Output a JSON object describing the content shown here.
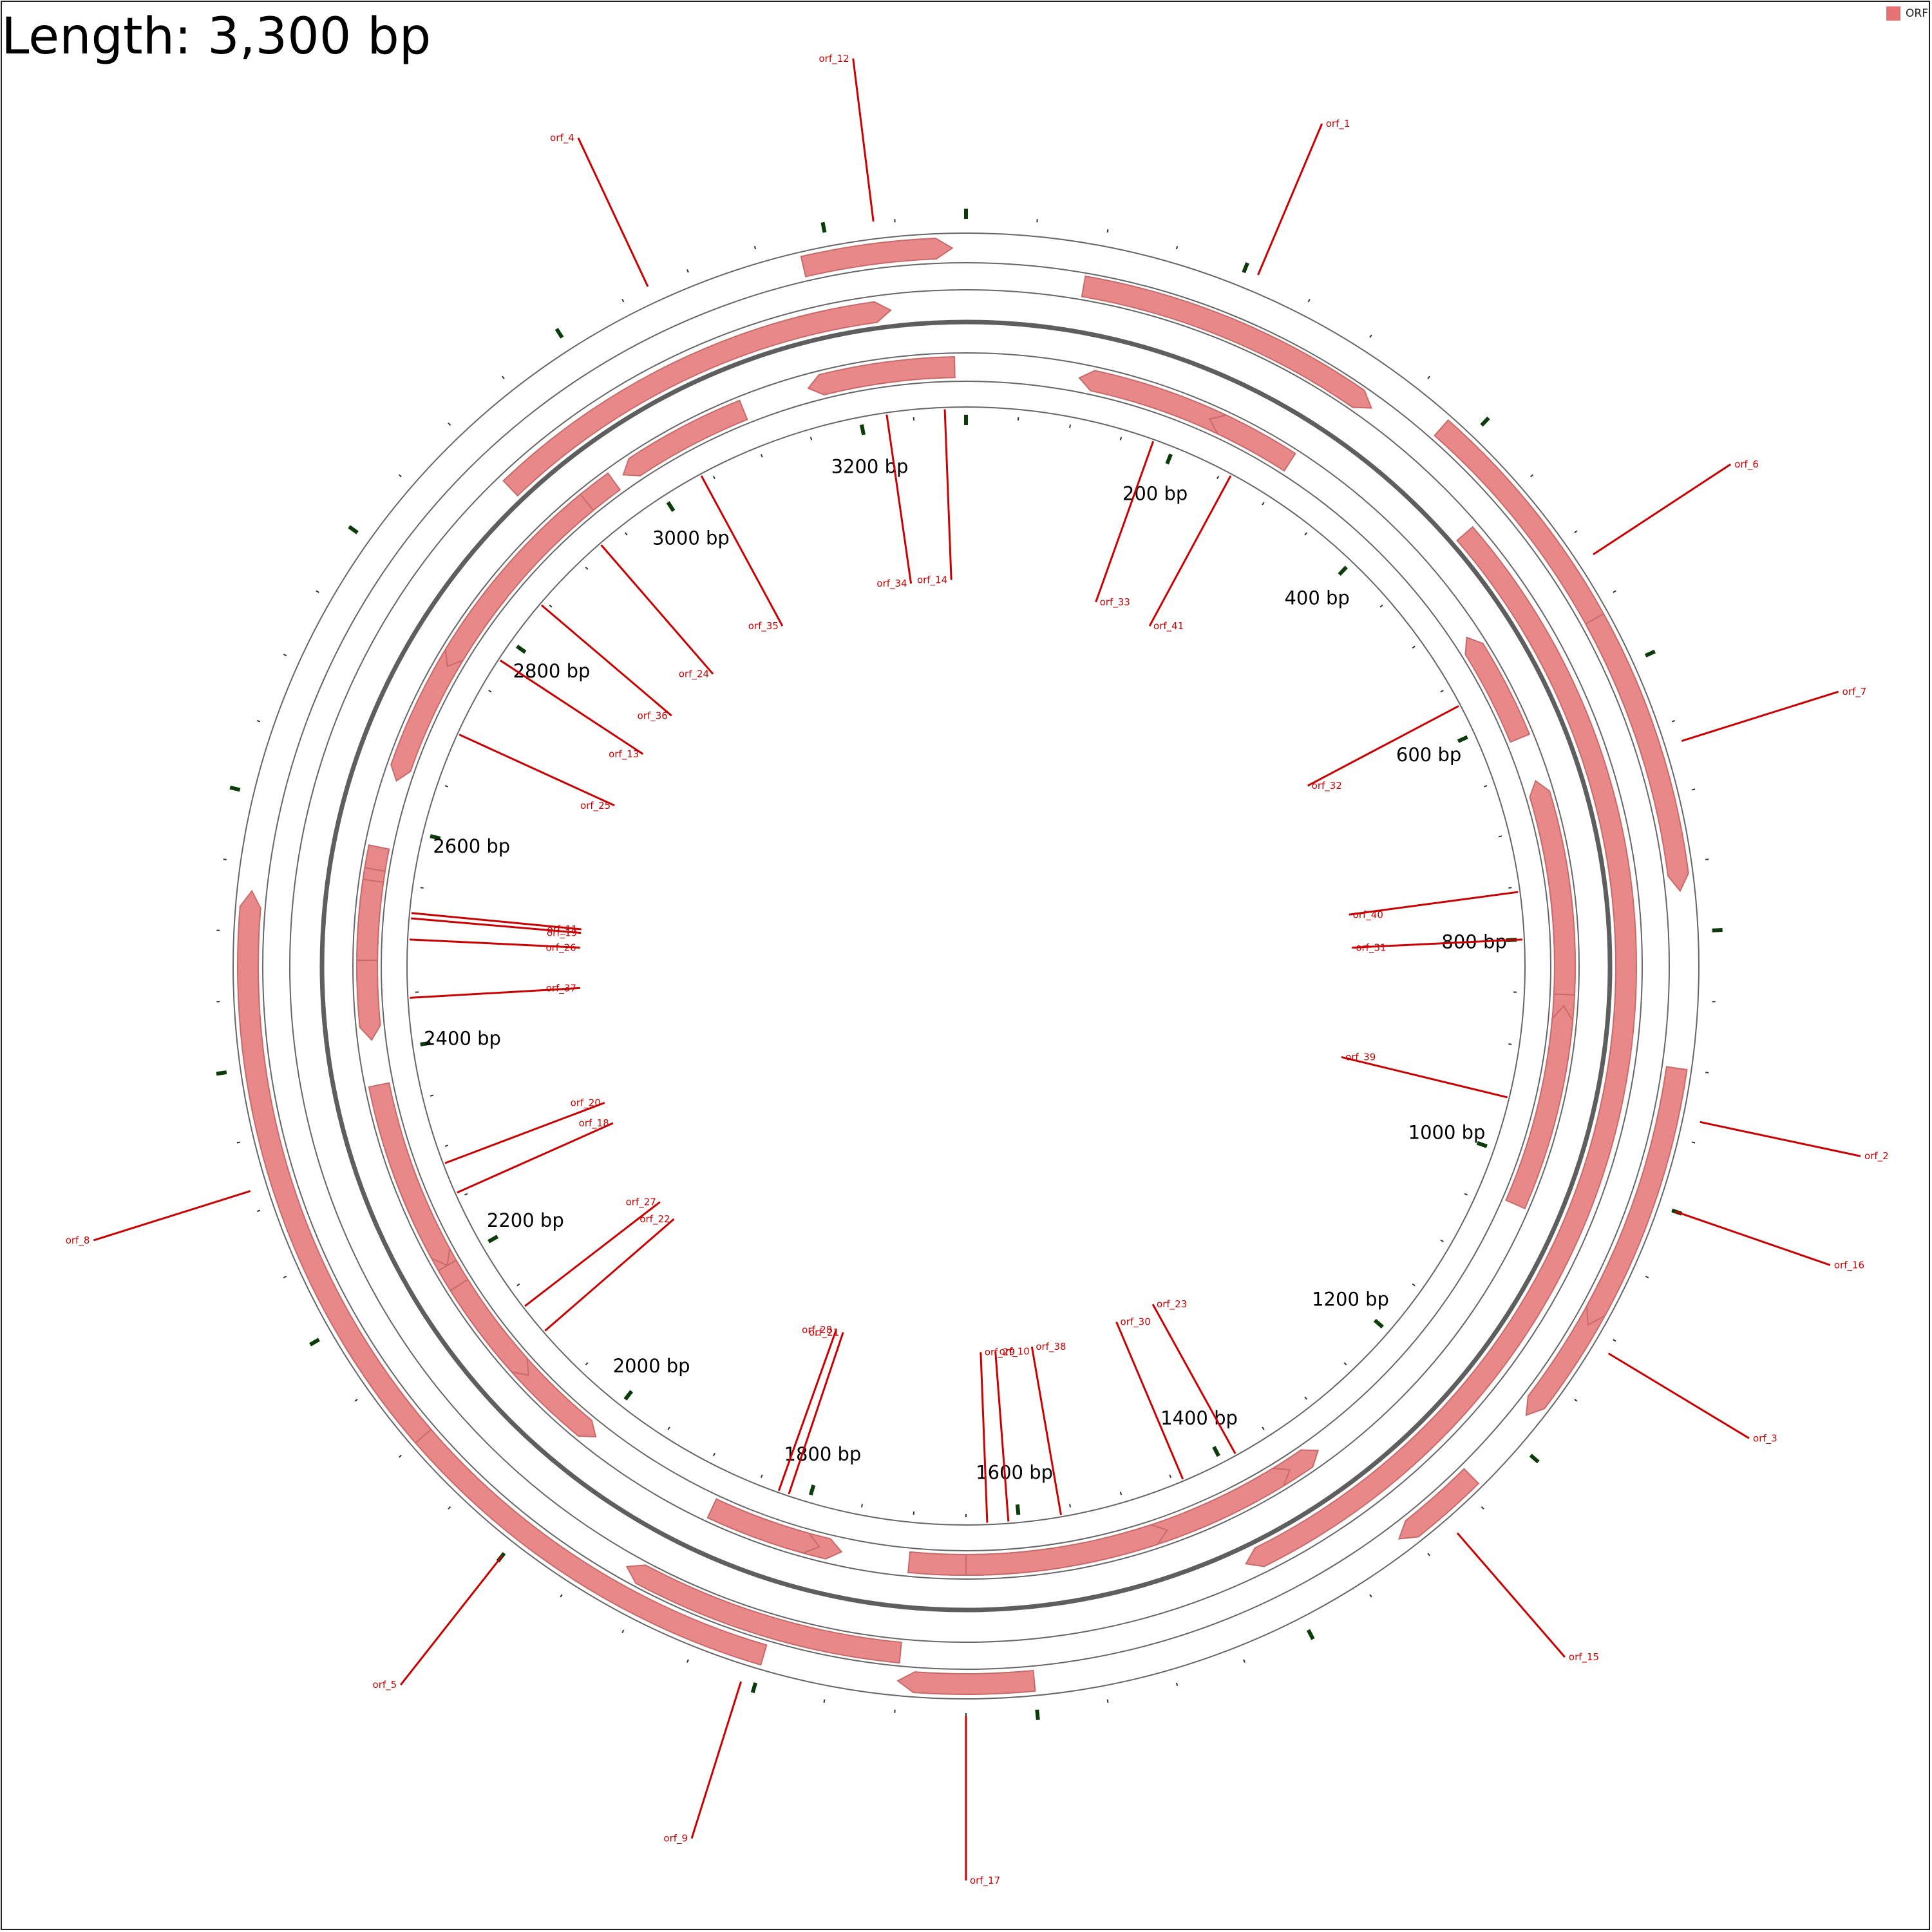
{
  "title": "Length: 3,300 bp",
  "legend": {
    "label": "ORF",
    "color": "#e57373"
  },
  "colors": {
    "feature": "#e88888",
    "feature_edge": "#c96a6a",
    "label": "#cc0000",
    "ring": "#666666",
    "backbone": "#5e5e5e",
    "major_tick": "#0a3d0a"
  },
  "chart_data": {
    "type": "circular-genome-map",
    "sequence_length_bp": 3300,
    "ticks": {
      "major_every_bp": 100,
      "minor_every_bp": 50,
      "scale_labels": [
        "200 bp",
        "400 bp",
        "600 bp",
        "800 bp",
        "1000 bp",
        "1200 bp",
        "1400 bp",
        "1600 bp",
        "1800 bp",
        "2000 bp",
        "2200 bp",
        "2400 bp",
        "2600 bp",
        "2800 bp",
        "3000 bp",
        "3200 bp"
      ]
    },
    "features": [
      {
        "name": "orf_1",
        "start": 90,
        "end": 330,
        "strand": "+",
        "track": 2
      },
      {
        "name": "orf_2",
        "start": 450,
        "end": 1420,
        "strand": "+",
        "track": 3
      },
      {
        "name": "orf_3",
        "start": 1040,
        "end": 1180,
        "strand": "+",
        "track": 1
      },
      {
        "name": "orf_4",
        "start": 2900,
        "end": 3240,
        "strand": "+",
        "track": 4
      },
      {
        "name": "orf_5",
        "start": 1800,
        "end": 2200,
        "strand": "+",
        "track": 1
      },
      {
        "name": "orf_6",
        "start": 380,
        "end": 660,
        "strand": "+",
        "track": 1
      },
      {
        "name": "orf_7",
        "start": 560,
        "end": 770,
        "strand": "+",
        "track": 1
      },
      {
        "name": "orf_8",
        "start": 2100,
        "end": 2530,
        "strand": "+",
        "track": 1
      },
      {
        "name": "orf_9",
        "start": 1700,
        "end": 1920,
        "strand": "+",
        "track": 2
      },
      {
        "name": "orf_10",
        "start": 1530,
        "end": 1690,
        "strand": "-",
        "track": 1
      },
      {
        "name": "orf_11",
        "start": 2470,
        "end": 2580,
        "strand": "-",
        "track": 1
      },
      {
        "name": "orf_12",
        "start": 3180,
        "end": 3290,
        "strand": "+",
        "track": 1
      },
      {
        "name": "orf_13",
        "start": 2730,
        "end": 2830,
        "strand": "-",
        "track": 1
      },
      {
        "name": "orf_14",
        "start": 3270,
        "end": 3290,
        "strand": "-",
        "track": 1
      },
      {
        "name": "orf_15",
        "start": 1240,
        "end": 1310,
        "strand": "+",
        "track": 1
      },
      {
        "name": "orf_16",
        "start": 900,
        "end": 1100,
        "strand": "+",
        "track": 1
      },
      {
        "name": "orf_17",
        "start": 1600,
        "end": 1700,
        "strand": "+",
        "track": 1
      },
      {
        "name": "orf_18",
        "start": 2160,
        "end": 2350,
        "strand": "-",
        "track": 1
      },
      {
        "name": "orf_19",
        "start": 2480,
        "end": 2560,
        "strand": "-",
        "track": 1
      },
      {
        "name": "orf_20",
        "start": 2200,
        "end": 2370,
        "strand": "-",
        "track": 1
      },
      {
        "name": "orf_21",
        "start": 1760,
        "end": 1880,
        "strand": "-",
        "track": 1
      },
      {
        "name": "orf_22",
        "start": 2000,
        "end": 2200,
        "strand": "-",
        "track": 1
      },
      {
        "name": "orf_23",
        "start": 1320,
        "end": 1450,
        "strand": "-",
        "track": 1
      },
      {
        "name": "orf_24",
        "start": 2880,
        "end": 2970,
        "strand": "-",
        "track": 1
      },
      {
        "name": "orf_25",
        "start": 2640,
        "end": 2760,
        "strand": "-",
        "track": 1
      },
      {
        "name": "orf_26",
        "start": 2450,
        "end": 2550,
        "strand": "-",
        "track": 1
      },
      {
        "name": "orf_27",
        "start": 2080,
        "end": 2180,
        "strand": "-",
        "track": 1
      },
      {
        "name": "orf_28",
        "start": 1780,
        "end": 1880,
        "strand": "-",
        "track": 1
      },
      {
        "name": "orf_29",
        "start": 1560,
        "end": 1700,
        "strand": "-",
        "track": 1
      },
      {
        "name": "orf_30",
        "start": 1350,
        "end": 1530,
        "strand": "-",
        "track": 1
      },
      {
        "name": "orf_31",
        "start": 680,
        "end": 920,
        "strand": "-",
        "track": 1
      },
      {
        "name": "orf_32",
        "start": 520,
        "end": 620,
        "strand": "-",
        "track": 1
      },
      {
        "name": "orf_33",
        "start": 100,
        "end": 260,
        "strand": "-",
        "track": 1
      },
      {
        "name": "orf_34",
        "start": 3160,
        "end": 3290,
        "strand": "-",
        "track": 1
      },
      {
        "name": "orf_35",
        "start": 2980,
        "end": 3100,
        "strand": "-",
        "track": 1
      },
      {
        "name": "orf_36",
        "start": 2750,
        "end": 2940,
        "strand": "-",
        "track": 1
      },
      {
        "name": "orf_37",
        "start": 2410,
        "end": 2480,
        "strand": "-",
        "track": 1
      },
      {
        "name": "orf_38",
        "start": 1470,
        "end": 1650,
        "strand": "-",
        "track": 1
      },
      {
        "name": "orf_39",
        "start": 860,
        "end": 1040,
        "strand": "-",
        "track": 1
      },
      {
        "name": "orf_40",
        "start": 660,
        "end": 850,
        "strand": "-",
        "track": 1
      },
      {
        "name": "orf_41",
        "start": 220,
        "end": 300,
        "strand": "-",
        "track": 1
      }
    ]
  }
}
